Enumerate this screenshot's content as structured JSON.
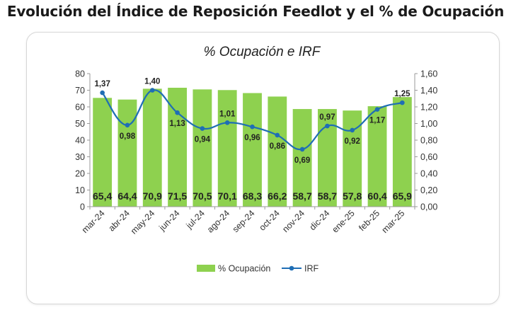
{
  "page": {
    "title": "Evolución del Índice de Reposición Feedlot y el % de Ocupación"
  },
  "chart_data": {
    "type": "bar",
    "title": "% Ocupación e IRF",
    "categories": [
      "mar-24",
      "abr-24",
      "may-24",
      "jun-24",
      "jul-24",
      "ago-24",
      "sep-24",
      "oct-24",
      "nov-24",
      "dic-24",
      "ene-25",
      "feb-25",
      "mar-25"
    ],
    "series": [
      {
        "name": "% Ocupación",
        "type": "bar",
        "axis": "left",
        "color": "#8ed14f",
        "values": [
          65.4,
          64.4,
          70.9,
          71.5,
          70.5,
          70.1,
          68.3,
          66.2,
          58.7,
          58.7,
          57.8,
          60.4,
          65.9
        ],
        "labels": [
          "65,4",
          "64,4",
          "70,9",
          "71,5",
          "70,5",
          "70,1",
          "68,3",
          "66,2",
          "58,7",
          "58,7",
          "57,8",
          "60,4",
          "65,9"
        ]
      },
      {
        "name": "IRF",
        "type": "line",
        "axis": "right",
        "color": "#1f6eb5",
        "values": [
          1.37,
          0.98,
          1.4,
          1.13,
          0.94,
          1.01,
          0.96,
          0.86,
          0.69,
          0.97,
          0.92,
          1.17,
          1.25
        ],
        "labels": [
          "1,37",
          "0,98",
          "1,40",
          "1,13",
          "0,94",
          "1,01",
          "0,96",
          "0,86",
          "0,69",
          "0,97",
          "0,92",
          "1,17",
          "1,25"
        ]
      }
    ],
    "y_left": {
      "min": 0,
      "max": 80,
      "ticks": [
        "0",
        "10",
        "20",
        "30",
        "40",
        "50",
        "60",
        "70",
        "80"
      ]
    },
    "y_right": {
      "min": 0,
      "max": 1.6,
      "ticks": [
        "0,00",
        "0,20",
        "0,40",
        "0,60",
        "0,80",
        "1,00",
        "1,20",
        "1,40",
        "1,60"
      ]
    },
    "grid": false,
    "legend": {
      "position": "bottom",
      "items": [
        "% Ocupación",
        "IRF"
      ]
    }
  }
}
